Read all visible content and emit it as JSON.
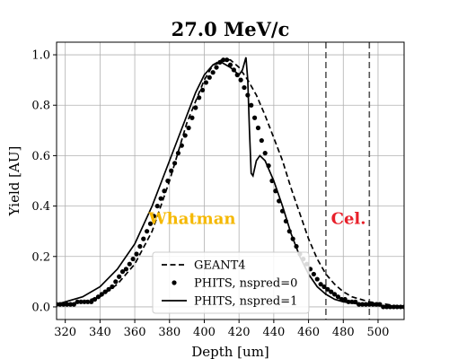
{
  "chart_data": {
    "type": "line",
    "title": "27.0 MeV/c",
    "xlabel": "Depth [um]",
    "ylabel": "Yield [AU]",
    "xlim": [
      315,
      515
    ],
    "ylim": [
      -0.05,
      1.05
    ],
    "xticks": [
      320,
      340,
      360,
      380,
      400,
      420,
      440,
      460,
      480,
      500
    ],
    "yticks": [
      0.0,
      0.2,
      0.4,
      0.6,
      0.8,
      1.0
    ],
    "grid": true,
    "legend_position": "bottom-center",
    "vlines": [
      470,
      495
    ],
    "annotations": [
      {
        "text": "Whatman",
        "x": 393,
        "y": 0.33,
        "color": "#f5b800"
      },
      {
        "text": "Cel.",
        "x": 483,
        "y": 0.33,
        "color": "#e8202a"
      }
    ],
    "series": [
      {
        "name": "GEANT4",
        "style": "dashed",
        "x": [
          315,
          320,
          330,
          340,
          350,
          360,
          370,
          380,
          390,
          400,
          405,
          410,
          415,
          420,
          425,
          430,
          435,
          440,
          445,
          450,
          455,
          460,
          465,
          470,
          475,
          480,
          485,
          490,
          495,
          500,
          505,
          510,
          515
        ],
        "y": [
          0.01,
          0.01,
          0.02,
          0.04,
          0.09,
          0.17,
          0.3,
          0.5,
          0.73,
          0.9,
          0.96,
          0.98,
          0.98,
          0.95,
          0.9,
          0.84,
          0.76,
          0.67,
          0.58,
          0.47,
          0.37,
          0.27,
          0.19,
          0.13,
          0.09,
          0.06,
          0.04,
          0.03,
          0.02,
          0.015,
          0.01,
          0.005,
          0.003
        ]
      },
      {
        "name": "PHITS, nspred=0",
        "style": "dots",
        "x": [
          315,
          317,
          319,
          321,
          323,
          325,
          327,
          329,
          331,
          333,
          335,
          337,
          339,
          341,
          343,
          345,
          347,
          349,
          351,
          353,
          355,
          357,
          359,
          361,
          363,
          365,
          367,
          369,
          371,
          373,
          375,
          377,
          379,
          381,
          383,
          385,
          387,
          389,
          391,
          393,
          395,
          397,
          399,
          401,
          403,
          405,
          407,
          409,
          411,
          413,
          415,
          417,
          419,
          421,
          423,
          425,
          427,
          429,
          431,
          433,
          435,
          437,
          439,
          441,
          443,
          445,
          447,
          449,
          451,
          453,
          455,
          457,
          459,
          461,
          463,
          465,
          467,
          469,
          471,
          473,
          475,
          477,
          479,
          481,
          483,
          485,
          487,
          489,
          491,
          493,
          495,
          497,
          499,
          501,
          503,
          505,
          507,
          509,
          511,
          513,
          515
        ],
        "y": [
          0.01,
          0.01,
          0.01,
          0.01,
          0.01,
          0.01,
          0.02,
          0.02,
          0.02,
          0.02,
          0.02,
          0.03,
          0.04,
          0.05,
          0.06,
          0.07,
          0.08,
          0.1,
          0.12,
          0.14,
          0.15,
          0.17,
          0.19,
          0.21,
          0.24,
          0.27,
          0.3,
          0.33,
          0.36,
          0.4,
          0.43,
          0.46,
          0.5,
          0.54,
          0.57,
          0.61,
          0.64,
          0.68,
          0.71,
          0.75,
          0.79,
          0.83,
          0.86,
          0.89,
          0.91,
          0.93,
          0.95,
          0.97,
          0.98,
          0.98,
          0.96,
          0.94,
          0.92,
          0.9,
          0.87,
          0.84,
          0.8,
          0.75,
          0.71,
          0.66,
          0.61,
          0.56,
          0.5,
          0.46,
          0.42,
          0.38,
          0.34,
          0.3,
          0.27,
          0.24,
          0.21,
          0.19,
          0.17,
          0.15,
          0.13,
          0.11,
          0.09,
          0.08,
          0.07,
          0.06,
          0.05,
          0.04,
          0.03,
          0.03,
          0.02,
          0.02,
          0.02,
          0.01,
          0.01,
          0.01,
          0.01,
          0.01,
          0.01,
          0.01,
          0.0,
          0.0,
          0.0,
          0.0,
          0.0,
          0.0,
          0.0
        ]
      },
      {
        "name": "PHITS, nspred=1",
        "style": "solid",
        "x": [
          315,
          320,
          330,
          340,
          350,
          360,
          370,
          380,
          390,
          395,
          400,
          405,
          410,
          415,
          420,
          422,
          424,
          425,
          426,
          427,
          428,
          430,
          432,
          435,
          440,
          445,
          450,
          455,
          460,
          465,
          470,
          475,
          480,
          485,
          490,
          500,
          510,
          515
        ],
        "y": [
          0.01,
          0.02,
          0.04,
          0.08,
          0.15,
          0.25,
          0.4,
          0.58,
          0.76,
          0.85,
          0.92,
          0.96,
          0.97,
          0.95,
          0.92,
          0.94,
          0.99,
          0.9,
          0.7,
          0.53,
          0.52,
          0.58,
          0.6,
          0.58,
          0.5,
          0.4,
          0.29,
          0.2,
          0.13,
          0.08,
          0.05,
          0.03,
          0.02,
          0.015,
          0.01,
          0.005,
          0.003,
          0.002
        ]
      }
    ]
  }
}
